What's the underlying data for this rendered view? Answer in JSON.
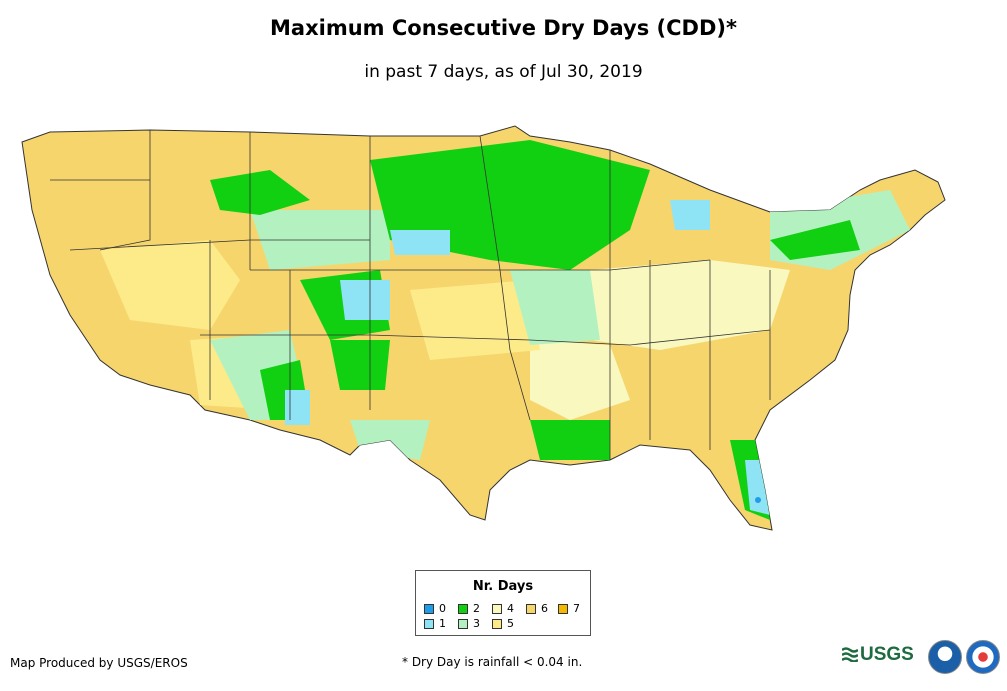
{
  "title": "Maximum Consecutive Dry Days (CDD)*",
  "subtitle": "in past 7 days, as of Jul 30, 2019",
  "legend": {
    "title": "Nr. Days",
    "items": [
      {
        "label": "0",
        "color": "#1e9de8"
      },
      {
        "label": "1",
        "color": "#8ee3f5"
      },
      {
        "label": "2",
        "color": "#11cf11"
      },
      {
        "label": "3",
        "color": "#b3f2c0"
      },
      {
        "label": "4",
        "color": "#f9f8bf"
      },
      {
        "label": "5",
        "color": "#fdeb8a"
      },
      {
        "label": "6",
        "color": "#f7d56d"
      },
      {
        "label": "7",
        "color": "#f4b800"
      }
    ]
  },
  "credit": "Map Produced by USGS/EROS",
  "footnote": "* Dry Day is rainfall < 0.04 in.",
  "logos": {
    "usgs": "USGS",
    "noaa_icon": "noaa-logo",
    "nws_icon": "nws-logo"
  }
}
